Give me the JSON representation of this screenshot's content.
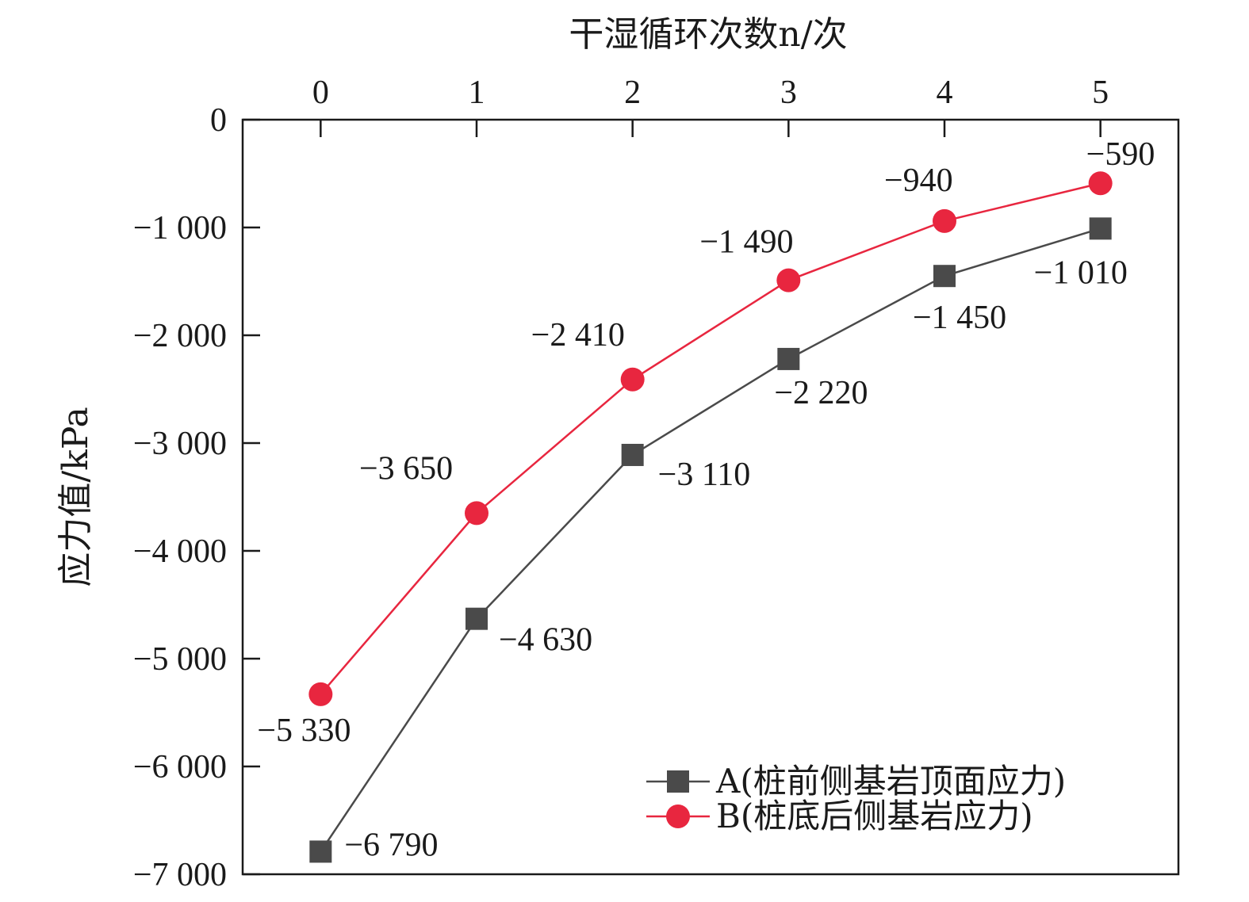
{
  "chart_data": {
    "type": "line",
    "xlabel": "干湿循环次数n/次",
    "ylabel": "应力值/kPa",
    "x": [
      0,
      1,
      2,
      3,
      4,
      5
    ],
    "x_tick_labels": [
      "0",
      "1",
      "2",
      "3",
      "4",
      "5"
    ],
    "xlim": [
      -0.5,
      5.5
    ],
    "x_axis_position": "top",
    "ylim": [
      -7000,
      0
    ],
    "y_ticks": [
      0,
      -1000,
      -2000,
      -3000,
      -4000,
      -5000,
      -6000,
      -7000
    ],
    "y_tick_labels": [
      "0",
      "−1 000",
      "−2 000",
      "−3 000",
      "−4 000",
      "−5 000",
      "−6 000",
      "−7 000"
    ],
    "grid": false,
    "legend_position": "bottom-right",
    "series": [
      {
        "name": "A(桩前侧基岩顶面应力)",
        "values": [
          -6790,
          -4630,
          -3110,
          -2220,
          -1450,
          -1010
        ],
        "labels": [
          "−6 790",
          "−4 630",
          "−3 110",
          "−2 220",
          "−1 450",
          "−1 010"
        ],
        "color": "#4a4a4a",
        "marker": "square"
      },
      {
        "name": "B(桩底后侧基岩应力)",
        "values": [
          -5330,
          -3650,
          -2410,
          -1490,
          -940,
          -590
        ],
        "labels": [
          "−5 330",
          "−3 650",
          "−2 410",
          "−1 490",
          "−940",
          "−590"
        ],
        "color": "#e8263f",
        "marker": "circle"
      }
    ]
  }
}
